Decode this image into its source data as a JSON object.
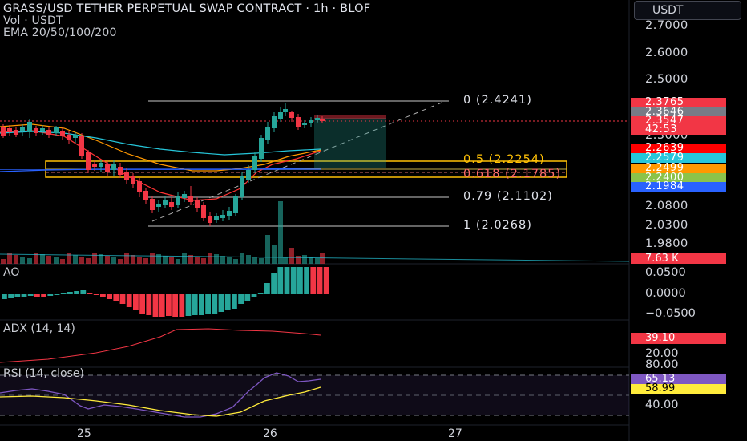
{
  "header": {
    "title": "GRASS/USD TETHER PERPETUAL SWAP CONTRACT · 1h · BLOF",
    "vol": "Vol · USDT",
    "ema": "EMA 20/50/100/200"
  },
  "currency_button": "USDT",
  "price_axis": [
    "2.7000",
    "2.6000",
    "2.5000",
    "2.3000",
    "2.0800",
    "2.0300",
    "1.9800"
  ],
  "price_badges": [
    {
      "value": "2.3765",
      "color": "#f23645"
    },
    {
      "value": "2.3646",
      "color": "#787b86"
    },
    {
      "value": "2.3547",
      "color": "#f23645"
    },
    {
      "value": "42:53",
      "color": "#f23645"
    },
    {
      "value": "2.2639",
      "color": "#ff0000"
    },
    {
      "value": "2.2579",
      "color": "#26c6da"
    },
    {
      "value": "2.2499",
      "color": "#ff9800"
    },
    {
      "value": "2.2400",
      "color": "#8bc34a"
    },
    {
      "value": "2.1984",
      "color": "#2962ff"
    }
  ],
  "volume_badge": {
    "value": "7.63 K",
    "color": "#f23645"
  },
  "fib_labels": [
    "0 (2.4241)",
    "0.5 (2.2254)",
    "0.618 (2.1785)",
    "0.79 (2.1102)",
    "1 (2.0268)"
  ],
  "ao": {
    "label": "AO",
    "axis": [
      "0.0500",
      "0.0000",
      "−0.0500"
    ]
  },
  "adx": {
    "label": "ADX (14, 14)",
    "badge": "39.10",
    "axis": [
      "20.00"
    ]
  },
  "rsi": {
    "label": "RSI (14, close)",
    "axis": [
      "80.00",
      "40.00"
    ],
    "badges": [
      {
        "value": "65.13",
        "color": "#7e57c2"
      },
      {
        "value": "58.99",
        "color": "#ffeb3b"
      }
    ]
  },
  "time_axis": [
    "25",
    "26",
    "27"
  ],
  "colors": {
    "up": "#26a69a",
    "down": "#f23645",
    "fib": "#ffffff",
    "fib_mid": "#ffc107"
  }
}
